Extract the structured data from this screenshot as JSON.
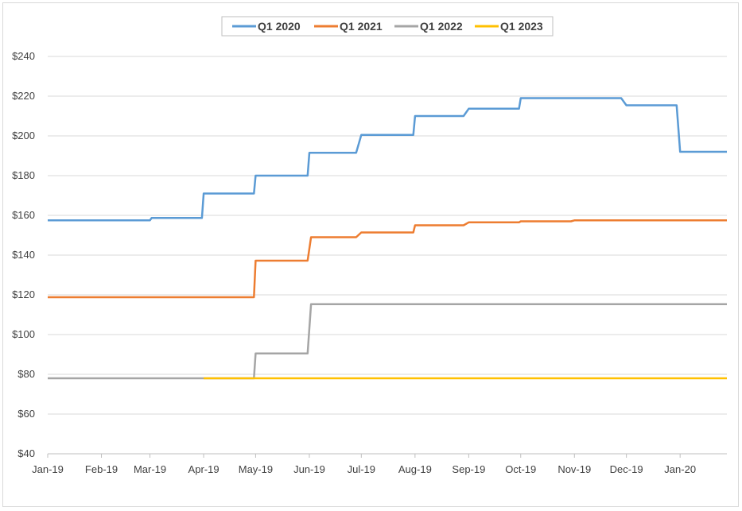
{
  "chart_data": {
    "type": "line",
    "title": "",
    "xlabel": "",
    "ylabel": "",
    "ylim": [
      40,
      240
    ],
    "yticks": [
      "$40",
      "$60",
      "$80",
      "$100",
      "$120",
      "$140",
      "$160",
      "$180",
      "$200",
      "$220",
      "$240"
    ],
    "ytick_values": [
      40,
      60,
      80,
      100,
      120,
      140,
      160,
      180,
      200,
      220,
      240
    ],
    "xticks": [
      "Jan-19",
      "Feb-19",
      "Mar-19",
      "Apr-19",
      "May-19",
      "Jun-19",
      "Jul-19",
      "Aug-19",
      "Sep-19",
      "Oct-19",
      "Nov-19",
      "Dec-19",
      "Jan-20"
    ],
    "xlim": [
      "2019-01-01",
      "2020-01-28"
    ],
    "grid": true,
    "legend_position": "top-center",
    "series": [
      {
        "name": "Q1 2020",
        "color": "#5b9bd5",
        "points": [
          [
            "2019-01-01",
            157.5
          ],
          [
            "2019-03-01",
            157.5
          ],
          [
            "2019-03-02",
            158.7
          ],
          [
            "2019-03-31",
            158.7
          ],
          [
            "2019-04-01",
            171
          ],
          [
            "2019-04-30",
            171
          ],
          [
            "2019-05-01",
            180
          ],
          [
            "2019-05-31",
            180
          ],
          [
            "2019-06-01",
            191.5
          ],
          [
            "2019-06-28",
            191.5
          ],
          [
            "2019-07-01",
            200.5
          ],
          [
            "2019-07-31",
            200.5
          ],
          [
            "2019-08-01",
            210
          ],
          [
            "2019-08-29",
            210
          ],
          [
            "2019-09-01",
            213.7
          ],
          [
            "2019-09-30",
            213.7
          ],
          [
            "2019-10-01",
            219
          ],
          [
            "2019-11-28",
            219
          ],
          [
            "2019-12-01",
            215.4
          ],
          [
            "2019-12-30",
            215.4
          ],
          [
            "2020-01-01",
            192
          ],
          [
            "2020-01-28",
            192
          ]
        ]
      },
      {
        "name": "Q1 2021",
        "color": "#ed7d31",
        "points": [
          [
            "2019-01-01",
            118.8
          ],
          [
            "2019-04-30",
            118.8
          ],
          [
            "2019-05-01",
            137.2
          ],
          [
            "2019-05-31",
            137.2
          ],
          [
            "2019-06-02",
            149
          ],
          [
            "2019-06-28",
            149
          ],
          [
            "2019-07-01",
            151.4
          ],
          [
            "2019-07-31",
            151.4
          ],
          [
            "2019-08-01",
            155
          ],
          [
            "2019-08-29",
            155
          ],
          [
            "2019-09-01",
            156.5
          ],
          [
            "2019-09-30",
            156.5
          ],
          [
            "2019-10-01",
            157
          ],
          [
            "2019-10-30",
            157
          ],
          [
            "2019-11-01",
            157.5
          ],
          [
            "2020-01-28",
            157.5
          ]
        ]
      },
      {
        "name": "Q1 2022",
        "color": "#a5a5a5",
        "points": [
          [
            "2019-01-01",
            78
          ],
          [
            "2019-04-30",
            78
          ],
          [
            "2019-05-01",
            90.5
          ],
          [
            "2019-05-31",
            90.5
          ],
          [
            "2019-06-02",
            115.3
          ],
          [
            "2020-01-28",
            115.3
          ]
        ]
      },
      {
        "name": "Q1 2023",
        "color": "#ffc000",
        "points": [
          [
            "2019-04-01",
            78
          ],
          [
            "2020-01-28",
            78
          ]
        ]
      }
    ]
  }
}
